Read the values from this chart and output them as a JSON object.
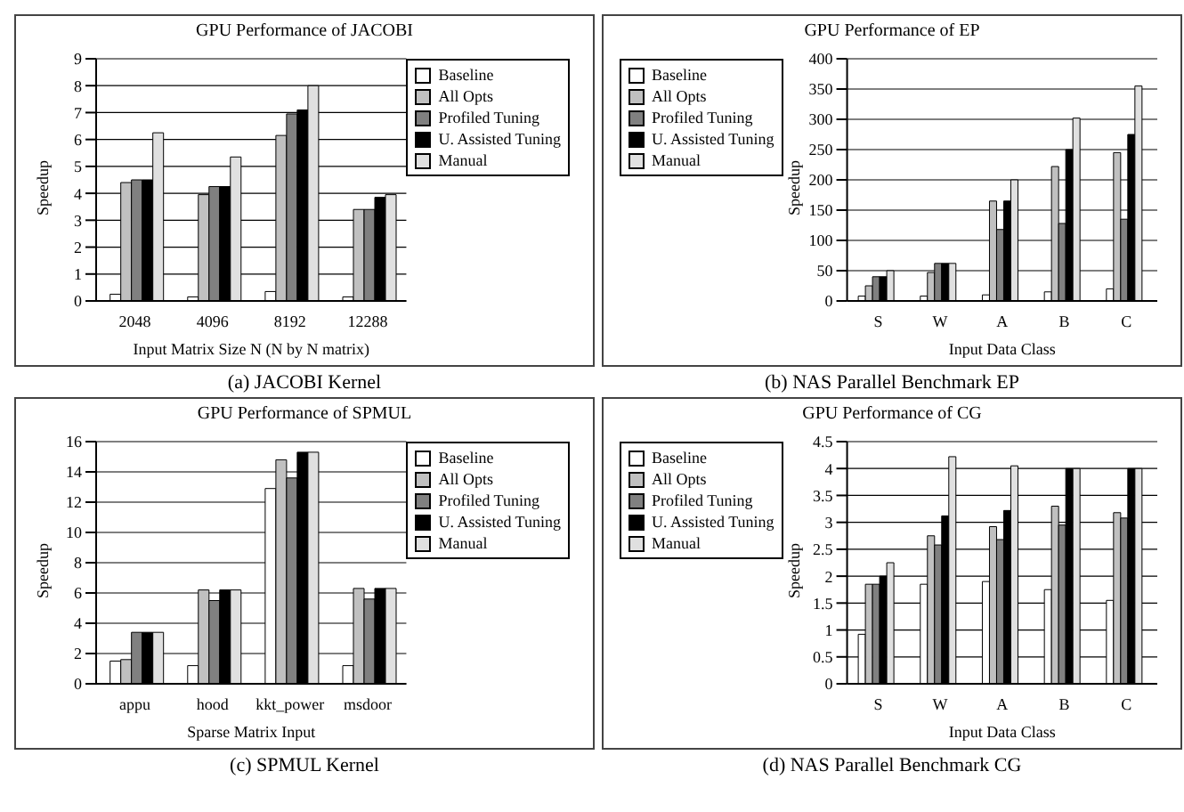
{
  "chart_data": [
    {
      "type": "bar",
      "title": "GPU Performance of JACOBI",
      "xlabel": "Input Matrix Size N (N by N matrix)",
      "ylabel": "Speedup",
      "categories": [
        "2048",
        "4096",
        "8192",
        "12288"
      ],
      "series": [
        {
          "name": "Baseline",
          "color": "#ffffff",
          "values": [
            0.25,
            0.15,
            0.35,
            0.15
          ]
        },
        {
          "name": "All Opts",
          "color": "#c0c0c0",
          "values": [
            4.4,
            3.95,
            6.15,
            3.4
          ]
        },
        {
          "name": "Profiled Tuning",
          "color": "#808080",
          "values": [
            4.5,
            4.25,
            6.95,
            3.4
          ]
        },
        {
          "name": "U. Assisted Tuning",
          "color": "#000000",
          "values": [
            4.5,
            4.25,
            7.1,
            3.85
          ]
        },
        {
          "name": "Manual",
          "color": "#e0e0e0",
          "values": [
            6.25,
            5.35,
            8.0,
            3.95
          ]
        }
      ],
      "ylim": [
        0,
        9
      ],
      "yticks": [
        0,
        1,
        2,
        3,
        4,
        5,
        6,
        7,
        8,
        9
      ],
      "grid": "y",
      "legend": "top right",
      "annotations": [
        "(a) JACOBI Kernel"
      ]
    },
    {
      "type": "bar",
      "title": "GPU Performance of EP",
      "xlabel": "Input Data Class",
      "ylabel": "Speedup",
      "categories": [
        "S",
        "W",
        "A",
        "B",
        "C"
      ],
      "series": [
        {
          "name": "Baseline",
          "color": "#ffffff",
          "values": [
            8,
            8,
            10,
            15,
            20
          ]
        },
        {
          "name": "All Opts",
          "color": "#c0c0c0",
          "values": [
            25,
            47,
            165,
            222,
            245
          ]
        },
        {
          "name": "Profiled Tuning",
          "color": "#808080",
          "values": [
            40,
            62,
            118,
            128,
            135
          ]
        },
        {
          "name": "U. Assisted Tuning",
          "color": "#000000",
          "values": [
            40,
            62,
            165,
            250,
            275
          ]
        },
        {
          "name": "Manual",
          "color": "#e0e0e0",
          "values": [
            50,
            62,
            200,
            302,
            355
          ]
        }
      ],
      "ylim": [
        0,
        400
      ],
      "yticks": [
        0,
        50,
        100,
        150,
        200,
        250,
        300,
        350,
        400
      ],
      "grid": "y",
      "legend": "top left",
      "annotations": [
        "(b) NAS Parallel Benchmark EP"
      ]
    },
    {
      "type": "bar",
      "title": "GPU Performance of SPMUL",
      "xlabel": "Sparse Matrix Input",
      "ylabel": "Speedup",
      "categories": [
        "appu",
        "hood",
        "kkt_power",
        "msdoor"
      ],
      "series": [
        {
          "name": "Baseline",
          "color": "#ffffff",
          "values": [
            1.5,
            1.2,
            12.9,
            1.2
          ]
        },
        {
          "name": "All Opts",
          "color": "#c0c0c0",
          "values": [
            1.6,
            6.2,
            14.8,
            6.3
          ]
        },
        {
          "name": "Profiled Tuning",
          "color": "#808080",
          "values": [
            3.4,
            5.5,
            13.6,
            5.6
          ]
        },
        {
          "name": "U. Assisted Tuning",
          "color": "#000000",
          "values": [
            3.4,
            6.2,
            15.3,
            6.3
          ]
        },
        {
          "name": "Manual",
          "color": "#e0e0e0",
          "values": [
            3.4,
            6.2,
            15.3,
            6.3
          ]
        }
      ],
      "ylim": [
        0,
        16
      ],
      "yticks": [
        0,
        2,
        4,
        6,
        8,
        10,
        12,
        14,
        16
      ],
      "grid": "y",
      "legend": "top right",
      "annotations": [
        "(c) SPMUL Kernel"
      ]
    },
    {
      "type": "bar",
      "title": "GPU Performance of CG",
      "xlabel": "Input Data Class",
      "ylabel": "Speedup",
      "categories": [
        "S",
        "W",
        "A",
        "B",
        "C"
      ],
      "series": [
        {
          "name": "Baseline",
          "color": "#ffffff",
          "values": [
            0.92,
            1.85,
            1.9,
            1.75,
            1.55
          ]
        },
        {
          "name": "All Opts",
          "color": "#c0c0c0",
          "values": [
            1.85,
            2.75,
            2.92,
            3.3,
            3.18
          ]
        },
        {
          "name": "Profiled Tuning",
          "color": "#808080",
          "values": [
            1.85,
            2.58,
            2.68,
            2.95,
            3.08
          ]
        },
        {
          "name": "U. Assisted Tuning",
          "color": "#000000",
          "values": [
            2.0,
            3.12,
            3.22,
            4.0,
            4.0
          ]
        },
        {
          "name": "Manual",
          "color": "#e0e0e0",
          "values": [
            2.25,
            4.22,
            4.05,
            4.0,
            4.0
          ]
        }
      ],
      "ylim": [
        0,
        4.5
      ],
      "yticks": [
        0,
        0.5,
        1,
        1.5,
        2,
        2.5,
        3,
        3.5,
        4,
        4.5
      ],
      "grid": "y",
      "legend": "top left",
      "annotations": [
        "(d) NAS Parallel Benchmark CG"
      ]
    }
  ]
}
